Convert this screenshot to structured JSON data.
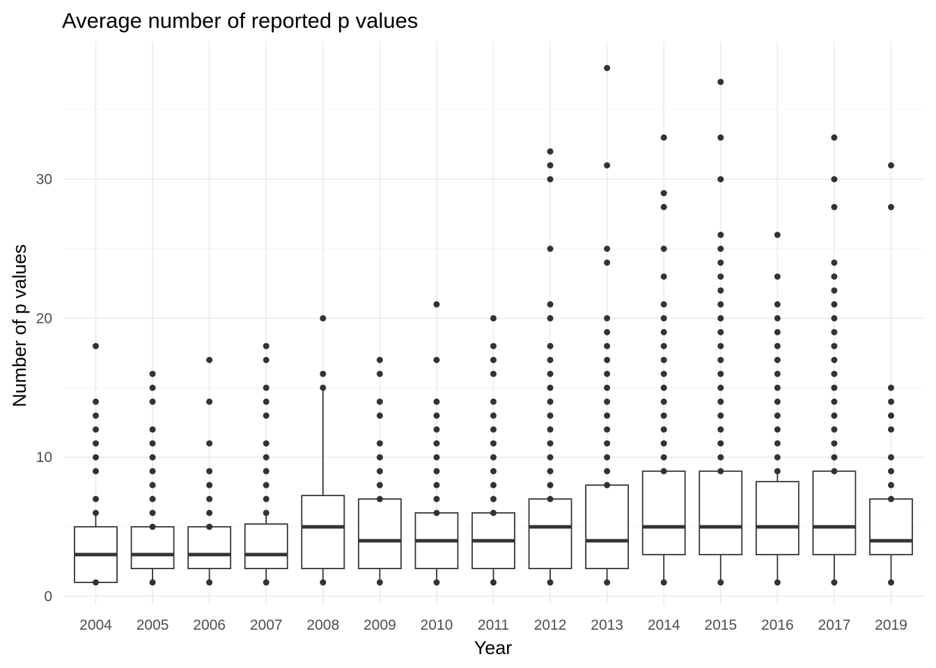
{
  "chart_data": {
    "type": "boxplot",
    "title": "Average number of reported p values",
    "xlabel": "Year",
    "ylabel": "Number of p values",
    "ylim": [
      -0.6,
      39.7
    ],
    "yticks": [
      0,
      10,
      20,
      30
    ],
    "grid": true,
    "legend": "none",
    "categories": [
      "2004",
      "2005",
      "2006",
      "2007",
      "2008",
      "2009",
      "2010",
      "2011",
      "2012",
      "2013",
      "2014",
      "2015",
      "2016",
      "2017",
      "2019"
    ],
    "boxes": [
      {
        "year": "2004",
        "min": 1,
        "q1": 1,
        "median": 3,
        "q3": 5,
        "max": 6,
        "outliers": [
          7,
          9,
          10,
          11,
          12,
          13,
          14,
          18
        ]
      },
      {
        "year": "2005",
        "min": 1,
        "q1": 2,
        "median": 3,
        "q3": 5,
        "max": 5,
        "outliers": [
          6,
          7,
          8,
          9,
          10,
          11,
          12,
          14,
          15,
          16
        ]
      },
      {
        "year": "2006",
        "min": 1,
        "q1": 2,
        "median": 3,
        "q3": 5,
        "max": 5,
        "outliers": [
          6,
          7,
          8,
          9,
          11,
          14,
          17
        ]
      },
      {
        "year": "2007",
        "min": 1,
        "q1": 2,
        "median": 3,
        "q3": 5.2,
        "max": 6,
        "outliers": [
          7,
          8,
          9,
          10,
          11,
          13,
          14,
          15,
          17,
          18
        ]
      },
      {
        "year": "2008",
        "min": 1,
        "q1": 2,
        "median": 5,
        "q3": 7.25,
        "max": 15,
        "outliers": [
          16,
          20
        ]
      },
      {
        "year": "2009",
        "min": 1,
        "q1": 2,
        "median": 4,
        "q3": 7,
        "max": 7,
        "outliers": [
          8,
          9,
          10,
          11,
          13,
          14,
          16,
          17
        ]
      },
      {
        "year": "2010",
        "min": 1,
        "q1": 2,
        "median": 4,
        "q3": 6,
        "max": 6,
        "outliers": [
          7,
          8,
          9,
          10,
          11,
          12,
          13,
          14,
          17,
          21
        ]
      },
      {
        "year": "2011",
        "min": 1,
        "q1": 2,
        "median": 4,
        "q3": 6,
        "max": 6,
        "outliers": [
          7,
          8,
          9,
          10,
          11,
          12,
          13,
          14,
          16,
          17,
          18,
          20
        ]
      },
      {
        "year": "2012",
        "min": 1,
        "q1": 2,
        "median": 5,
        "q3": 7,
        "max": 7,
        "outliers": [
          8,
          9,
          10,
          11,
          12,
          13,
          14,
          15,
          16,
          17,
          18,
          20,
          21,
          25,
          30,
          31,
          32
        ]
      },
      {
        "year": "2013",
        "min": 1,
        "q1": 2,
        "median": 4,
        "q3": 8,
        "max": 8,
        "outliers": [
          9,
          10,
          11,
          12,
          13,
          14,
          15,
          16,
          17,
          18,
          19,
          20,
          24,
          25,
          31,
          38
        ]
      },
      {
        "year": "2014",
        "min": 1,
        "q1": 3,
        "median": 5,
        "q3": 9,
        "max": 9,
        "outliers": [
          10,
          11,
          12,
          13,
          14,
          15,
          16,
          17,
          18,
          19,
          20,
          21,
          23,
          25,
          28,
          29,
          33
        ]
      },
      {
        "year": "2015",
        "min": 1,
        "q1": 3,
        "median": 5,
        "q3": 9,
        "max": 9,
        "outliers": [
          10,
          11,
          12,
          13,
          14,
          15,
          16,
          17,
          18,
          19,
          20,
          21,
          22,
          23,
          24,
          25,
          26,
          30,
          33,
          37
        ]
      },
      {
        "year": "2016",
        "min": 1,
        "q1": 3,
        "median": 5,
        "q3": 8.25,
        "max": 9,
        "outliers": [
          10,
          11,
          12,
          13,
          14,
          15,
          16,
          17,
          18,
          19,
          20,
          21,
          23,
          26
        ]
      },
      {
        "year": "2017",
        "min": 1,
        "q1": 3,
        "median": 5,
        "q3": 9,
        "max": 9,
        "outliers": [
          10,
          11,
          12,
          13,
          14,
          15,
          16,
          17,
          18,
          19,
          20,
          21,
          22,
          23,
          24,
          28,
          30,
          33
        ]
      },
      {
        "year": "2019",
        "min": 1,
        "q1": 3,
        "median": 4,
        "q3": 7,
        "max": 7,
        "outliers": [
          8,
          9,
          10,
          12,
          13,
          14,
          15,
          28,
          31
        ]
      }
    ]
  }
}
